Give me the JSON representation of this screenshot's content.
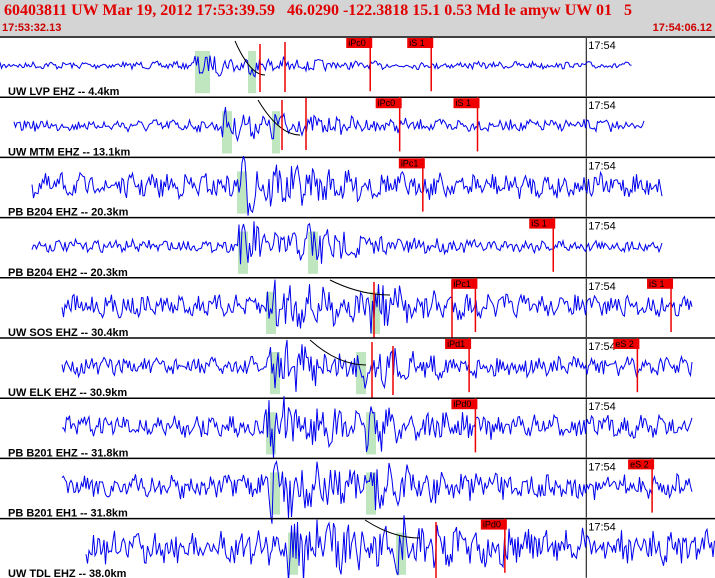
{
  "header": {
    "title": "60403811 UW Mar 19, 2012 17:53:39.59   46.0290 -122.3818 15.1 0.53 Md le amyw UW 01   5",
    "start_time": "17:53:32.13",
    "end_time": "17:54:06.12"
  },
  "colors": {
    "trace": "#0000ee",
    "pick_box": "#ee0000",
    "pick_text": "#000000",
    "window": "#bfe6bf",
    "header_bg": "#d4d4d4",
    "header_text": "#e00000"
  },
  "chart_data": {
    "type": "seismogram",
    "time_range": [
      "17:53:32.13",
      "17:54:06.12"
    ],
    "minute_label": "17:54",
    "traces": [
      {
        "label": "UW LVP EHZ -- 4.4km",
        "picks": [
          {
            "text": "iPc0",
            "t": 17.6
          },
          {
            "text": "iS 1",
            "t": 20.5
          }
        ]
      },
      {
        "label": "UW MTM EHZ -- 13.1km",
        "picks": [
          {
            "text": "iPc0",
            "t": 19.0
          },
          {
            "text": "iS 1",
            "t": 22.7
          }
        ]
      },
      {
        "label": "PB B204 EHZ -- 20.3km",
        "picks": [
          {
            "text": "iPc1",
            "t": 20.1
          }
        ]
      },
      {
        "label": "PB B204 EH2 -- 20.3km",
        "picks": [
          {
            "text": "iS 1",
            "t": 26.3
          }
        ]
      },
      {
        "label": "UW SOS EHZ -- 30.4km",
        "picks": [
          {
            "text": "iPc1",
            "t": 22.6
          },
          {
            "text": "iS 1",
            "t": 31.9
          }
        ]
      },
      {
        "label": "UW ELK EHZ -- 30.9km",
        "picks": [
          {
            "text": "iPd1",
            "t": 22.3
          },
          {
            "text": "eS 2",
            "t": 30.3
          }
        ]
      },
      {
        "label": "PB B201 EHZ -- 31.8km",
        "picks": [
          {
            "text": "iPd0",
            "t": 22.6
          }
        ]
      },
      {
        "label": "PB B201 EH1 -- 31.8km",
        "picks": [
          {
            "text": "eS 2",
            "t": 31.0
          }
        ]
      },
      {
        "label": "UW TDL EHZ -- 38.0km",
        "picks": [
          {
            "text": "iPd0",
            "t": 24.0
          }
        ]
      }
    ]
  }
}
